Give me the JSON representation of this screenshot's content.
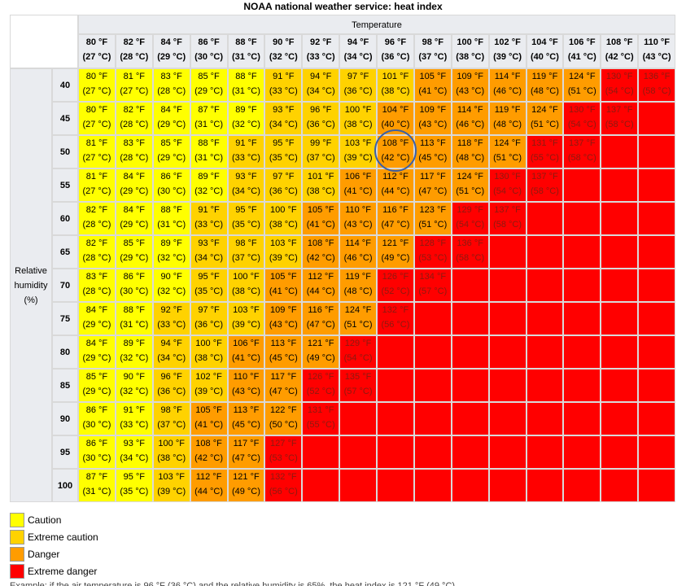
{
  "page_title": "NOAA national weather service: heat index",
  "temperature_header": "Temperature",
  "humidity_header": "Relative humidity (%)",
  "colors": {
    "caution": "#ffff00",
    "extreme_caution": "#ffd200",
    "danger": "#ff9c00",
    "extreme_danger": "#ff0000",
    "header_bg": "#eaecf0",
    "highlight_circle": "#3b5fa6"
  },
  "legend": [
    {
      "label": "Caution",
      "category": "caution"
    },
    {
      "label": "Extreme caution",
      "category": "extreme_caution"
    },
    {
      "label": "Danger",
      "category": "danger"
    },
    {
      "label": "Extreme danger",
      "category": "extreme_danger"
    }
  ],
  "footnote": "Example: if the air temperature is 96 °F (36 °C) and the relative humidity is 65%, the heat index is 121 °F (49 °C)",
  "chart_data": {
    "type": "heatmap",
    "title": "NOAA national weather service: heat index",
    "x_label": "Temperature",
    "y_label": "Relative humidity (%)",
    "temperatures": [
      {
        "f": "80 °F",
        "c": "(27 °C)"
      },
      {
        "f": "82 °F",
        "c": "(28 °C)"
      },
      {
        "f": "84 °F",
        "c": "(29 °C)"
      },
      {
        "f": "86 °F",
        "c": "(30 °C)"
      },
      {
        "f": "88 °F",
        "c": "(31 °C)"
      },
      {
        "f": "90 °F",
        "c": "(32 °C)"
      },
      {
        "f": "92 °F",
        "c": "(33 °C)"
      },
      {
        "f": "94 °F",
        "c": "(34 °C)"
      },
      {
        "f": "96 °F",
        "c": "(36 °C)"
      },
      {
        "f": "98 °F",
        "c": "(37 °C)"
      },
      {
        "f": "100 °F",
        "c": "(38 °C)"
      },
      {
        "f": "102 °F",
        "c": "(39 °C)"
      },
      {
        "f": "104 °F",
        "c": "(40 °C)"
      },
      {
        "f": "106 °F",
        "c": "(41 °C)"
      },
      {
        "f": "108 °F",
        "c": "(42 °C)"
      },
      {
        "f": "110 °F",
        "c": "(43 °C)"
      }
    ],
    "humidity": [
      "40",
      "45",
      "50",
      "55",
      "60",
      "65",
      "70",
      "75",
      "80",
      "85",
      "90",
      "95",
      "100"
    ],
    "rows": [
      [
        [
          "80 °F",
          "(27 °C)",
          "caution"
        ],
        [
          "81 °F",
          "(27 °C)",
          "caution"
        ],
        [
          "83 °F",
          "(28 °C)",
          "caution"
        ],
        [
          "85 °F",
          "(29 °C)",
          "caution"
        ],
        [
          "88 °F",
          "(31 °C)",
          "caution"
        ],
        [
          "91 °F",
          "(33 °C)",
          "extreme_caution"
        ],
        [
          "94 °F",
          "(34 °C)",
          "extreme_caution"
        ],
        [
          "97 °F",
          "(36 °C)",
          "extreme_caution"
        ],
        [
          "101 °F",
          "(38 °C)",
          "extreme_caution"
        ],
        [
          "105 °F",
          "(41 °C)",
          "danger"
        ],
        [
          "109 °F",
          "(43 °C)",
          "danger"
        ],
        [
          "114 °F",
          "(46 °C)",
          "danger"
        ],
        [
          "119 °F",
          "(48 °C)",
          "danger"
        ],
        [
          "124 °F",
          "(51 °C)",
          "danger"
        ],
        [
          "130 °F",
          "(54 °C)",
          "extreme_danger"
        ],
        [
          "136 °F",
          "(58 °C)",
          "extreme_danger"
        ]
      ],
      [
        [
          "80 °F",
          "(27 °C)",
          "caution"
        ],
        [
          "82 °F",
          "(28 °C)",
          "caution"
        ],
        [
          "84 °F",
          "(29 °C)",
          "caution"
        ],
        [
          "87 °F",
          "(31 °C)",
          "caution"
        ],
        [
          "89 °F",
          "(32 °C)",
          "caution"
        ],
        [
          "93 °F",
          "(34 °C)",
          "extreme_caution"
        ],
        [
          "96 °F",
          "(36 °C)",
          "extreme_caution"
        ],
        [
          "100 °F",
          "(38 °C)",
          "extreme_caution"
        ],
        [
          "104 °F",
          "(40 °C)",
          "danger"
        ],
        [
          "109 °F",
          "(43 °C)",
          "danger"
        ],
        [
          "114 °F",
          "(46 °C)",
          "danger"
        ],
        [
          "119 °F",
          "(48 °C)",
          "danger"
        ],
        [
          "124 °F",
          "(51 °C)",
          "danger"
        ],
        [
          "130 °F",
          "(54 °C)",
          "extreme_danger"
        ],
        [
          "137 °F",
          "(58 °C)",
          "extreme_danger"
        ],
        null
      ],
      [
        [
          "81 °F",
          "(27 °C)",
          "caution"
        ],
        [
          "83 °F",
          "(28 °C)",
          "caution"
        ],
        [
          "85 °F",
          "(29 °C)",
          "caution"
        ],
        [
          "88 °F",
          "(31 °C)",
          "caution"
        ],
        [
          "91 °F",
          "(33 °C)",
          "extreme_caution"
        ],
        [
          "95 °F",
          "(35 °C)",
          "extreme_caution"
        ],
        [
          "99 °F",
          "(37 °C)",
          "extreme_caution"
        ],
        [
          "103 °F",
          "(39 °C)",
          "extreme_caution"
        ],
        [
          "108 °F",
          "(42 °C)",
          "danger"
        ],
        [
          "113 °F",
          "(45 °C)",
          "danger"
        ],
        [
          "118 °F",
          "(48 °C)",
          "danger"
        ],
        [
          "124 °F",
          "(51 °C)",
          "danger"
        ],
        [
          "131 °F",
          "(55 °C)",
          "extreme_danger"
        ],
        [
          "137 °F",
          "(58 °C)",
          "extreme_danger"
        ],
        null,
        null
      ],
      [
        [
          "81 °F",
          "(27 °C)",
          "caution"
        ],
        [
          "84 °F",
          "(29 °C)",
          "caution"
        ],
        [
          "86 °F",
          "(30 °C)",
          "caution"
        ],
        [
          "89 °F",
          "(32 °C)",
          "caution"
        ],
        [
          "93 °F",
          "(34 °C)",
          "extreme_caution"
        ],
        [
          "97 °F",
          "(36 °C)",
          "extreme_caution"
        ],
        [
          "101 °F",
          "(38 °C)",
          "extreme_caution"
        ],
        [
          "106 °F",
          "(41 °C)",
          "danger"
        ],
        [
          "112 °F",
          "(44 °C)",
          "danger"
        ],
        [
          "117 °F",
          "(47 °C)",
          "danger"
        ],
        [
          "124 °F",
          "(51 °C)",
          "danger"
        ],
        [
          "130 °F",
          "(54 °C)",
          "extreme_danger"
        ],
        [
          "137 °F",
          "(58 °C)",
          "extreme_danger"
        ],
        null,
        null,
        null
      ],
      [
        [
          "82 °F",
          "(28 °C)",
          "caution"
        ],
        [
          "84 °F",
          "(29 °C)",
          "caution"
        ],
        [
          "88 °F",
          "(31 °C)",
          "caution"
        ],
        [
          "91 °F",
          "(33 °C)",
          "extreme_caution"
        ],
        [
          "95 °F",
          "(35 °C)",
          "extreme_caution"
        ],
        [
          "100 °F",
          "(38 °C)",
          "extreme_caution"
        ],
        [
          "105 °F",
          "(41 °C)",
          "danger"
        ],
        [
          "110 °F",
          "(43 °C)",
          "danger"
        ],
        [
          "116 °F",
          "(47 °C)",
          "danger"
        ],
        [
          "123 °F",
          "(51 °C)",
          "danger"
        ],
        [
          "129 °F",
          "(54 °C)",
          "extreme_danger"
        ],
        [
          "137 °F",
          "(58 °C)",
          "extreme_danger"
        ],
        null,
        null,
        null,
        null
      ],
      [
        [
          "82 °F",
          "(28 °C)",
          "caution"
        ],
        [
          "85 °F",
          "(29 °C)",
          "caution"
        ],
        [
          "89 °F",
          "(32 °C)",
          "caution"
        ],
        [
          "93 °F",
          "(34 °C)",
          "extreme_caution"
        ],
        [
          "98 °F",
          "(37 °C)",
          "extreme_caution"
        ],
        [
          "103 °F",
          "(39 °C)",
          "extreme_caution"
        ],
        [
          "108 °F",
          "(42 °C)",
          "danger"
        ],
        [
          "114 °F",
          "(46 °C)",
          "danger"
        ],
        [
          "121 °F",
          "(49 °C)",
          "danger"
        ],
        [
          "128 °F",
          "(53 °C)",
          "extreme_danger"
        ],
        [
          "136 °F",
          "(58 °C)",
          "extreme_danger"
        ],
        null,
        null,
        null,
        null,
        null
      ],
      [
        [
          "83 °F",
          "(28 °C)",
          "caution"
        ],
        [
          "86 °F",
          "(30 °C)",
          "caution"
        ],
        [
          "90 °F",
          "(32 °C)",
          "caution"
        ],
        [
          "95 °F",
          "(35 °C)",
          "extreme_caution"
        ],
        [
          "100 °F",
          "(38 °C)",
          "extreme_caution"
        ],
        [
          "105 °F",
          "(41 °C)",
          "danger"
        ],
        [
          "112 °F",
          "(44 °C)",
          "danger"
        ],
        [
          "119 °F",
          "(48 °C)",
          "danger"
        ],
        [
          "126 °F",
          "(52 °C)",
          "extreme_danger"
        ],
        [
          "134 °F",
          "(57 °C)",
          "extreme_danger"
        ],
        null,
        null,
        null,
        null,
        null,
        null
      ],
      [
        [
          "84 °F",
          "(29 °C)",
          "caution"
        ],
        [
          "88 °F",
          "(31 °C)",
          "caution"
        ],
        [
          "92 °F",
          "(33 °C)",
          "extreme_caution"
        ],
        [
          "97 °F",
          "(36 °C)",
          "extreme_caution"
        ],
        [
          "103 °F",
          "(39 °C)",
          "extreme_caution"
        ],
        [
          "109 °F",
          "(43 °C)",
          "danger"
        ],
        [
          "116 °F",
          "(47 °C)",
          "danger"
        ],
        [
          "124 °F",
          "(51 °C)",
          "danger"
        ],
        [
          "132 °F",
          "(56 °C)",
          "extreme_danger"
        ],
        null,
        null,
        null,
        null,
        null,
        null,
        null
      ],
      [
        [
          "84 °F",
          "(29 °C)",
          "caution"
        ],
        [
          "89 °F",
          "(32 °C)",
          "caution"
        ],
        [
          "94 °F",
          "(34 °C)",
          "extreme_caution"
        ],
        [
          "100 °F",
          "(38 °C)",
          "extreme_caution"
        ],
        [
          "106 °F",
          "(41 °C)",
          "danger"
        ],
        [
          "113 °F",
          "(45 °C)",
          "danger"
        ],
        [
          "121 °F",
          "(49 °C)",
          "danger"
        ],
        [
          "129 °F",
          "(54 °C)",
          "extreme_danger"
        ],
        null,
        null,
        null,
        null,
        null,
        null,
        null,
        null
      ],
      [
        [
          "85 °F",
          "(29 °C)",
          "caution"
        ],
        [
          "90 °F",
          "(32 °C)",
          "caution"
        ],
        [
          "96 °F",
          "(36 °C)",
          "extreme_caution"
        ],
        [
          "102 °F",
          "(39 °C)",
          "extreme_caution"
        ],
        [
          "110 °F",
          "(43 °C)",
          "danger"
        ],
        [
          "117 °F",
          "(47 °C)",
          "danger"
        ],
        [
          "126 °F",
          "(52 °C)",
          "extreme_danger"
        ],
        [
          "135 °F",
          "(57 °C)",
          "extreme_danger"
        ],
        null,
        null,
        null,
        null,
        null,
        null,
        null,
        null
      ],
      [
        [
          "86 °F",
          "(30 °C)",
          "caution"
        ],
        [
          "91 °F",
          "(33 °C)",
          "caution"
        ],
        [
          "98 °F",
          "(37 °C)",
          "extreme_caution"
        ],
        [
          "105 °F",
          "(41 °C)",
          "danger"
        ],
        [
          "113 °F",
          "(45 °C)",
          "danger"
        ],
        [
          "122 °F",
          "(50 °C)",
          "danger"
        ],
        [
          "131 °F",
          "(55 °C)",
          "extreme_danger"
        ],
        null,
        null,
        null,
        null,
        null,
        null,
        null,
        null,
        null
      ],
      [
        [
          "86 °F",
          "(30 °C)",
          "caution"
        ],
        [
          "93 °F",
          "(34 °C)",
          "caution"
        ],
        [
          "100 °F",
          "(38 °C)",
          "extreme_caution"
        ],
        [
          "108 °F",
          "(42 °C)",
          "danger"
        ],
        [
          "117 °F",
          "(47 °C)",
          "danger"
        ],
        [
          "127 °F",
          "(53 °C)",
          "extreme_danger"
        ],
        null,
        null,
        null,
        null,
        null,
        null,
        null,
        null,
        null,
        null
      ],
      [
        [
          "87 °F",
          "(31 °C)",
          "caution"
        ],
        [
          "95 °F",
          "(35 °C)",
          "caution"
        ],
        [
          "103 °F",
          "(39 °C)",
          "extreme_caution"
        ],
        [
          "112 °F",
          "(44 °C)",
          "danger"
        ],
        [
          "121 °F",
          "(49 °C)",
          "danger"
        ],
        [
          "132 °F",
          "(56 °C)",
          "extreme_danger"
        ],
        null,
        null,
        null,
        null,
        null,
        null,
        null,
        null,
        null,
        null
      ]
    ],
    "highlight": {
      "humidity": "50",
      "temperature": "96 °F",
      "value": "108 °F"
    }
  }
}
